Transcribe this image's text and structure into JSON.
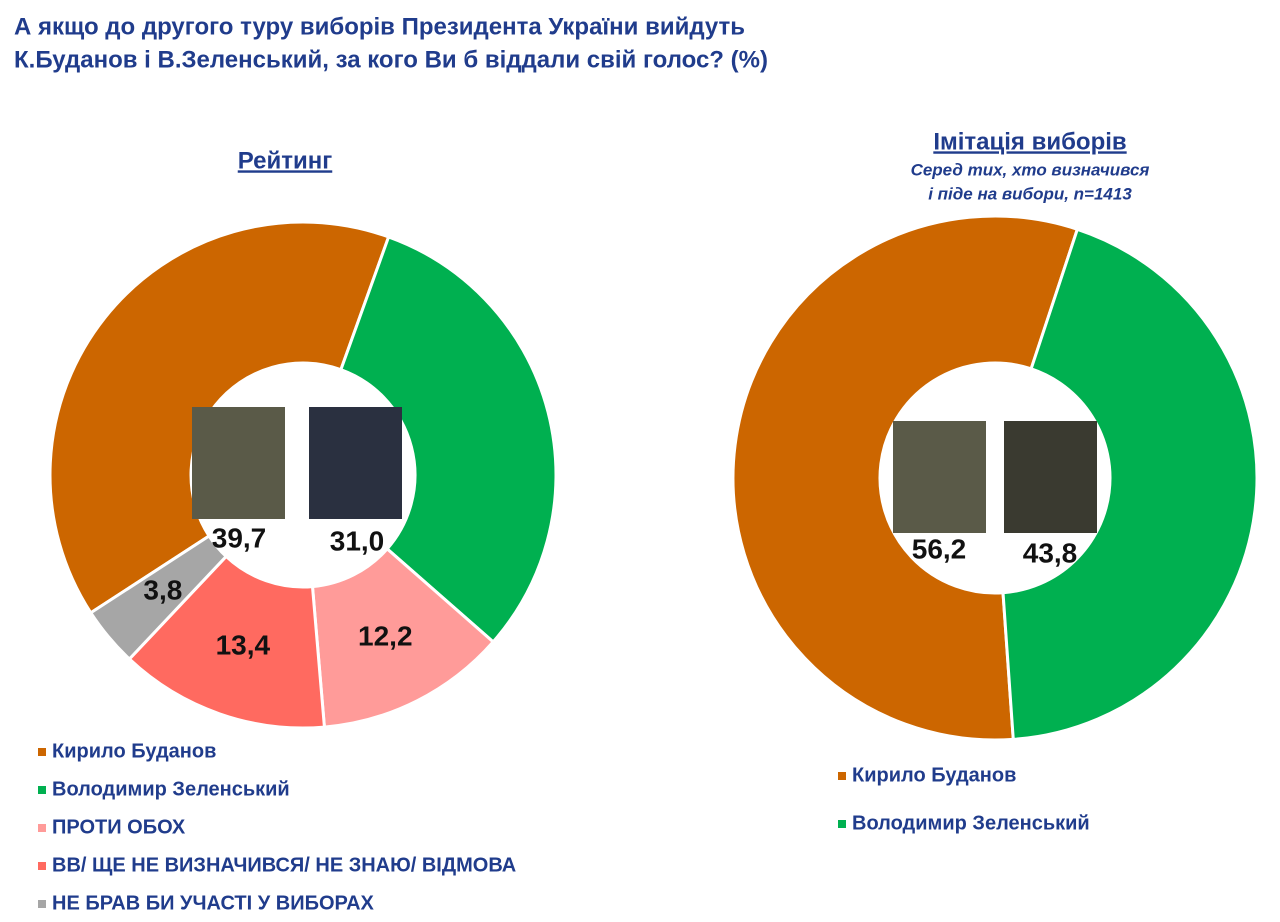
{
  "title": [
    "А якщо до другого туру виборів Президента України вийдуть",
    "К.Буданов і В.Зеленський, за кого Ви б віддали свій голос? (%)"
  ],
  "chart_data": [
    {
      "type": "pie",
      "title": "Рейтинг",
      "categories": [
        "Кирило Буданов",
        "Володимир Зеленський",
        "ПРОТИ ОБОХ",
        "ВВ/ ЩЕ НЕ ВИЗНАЧИВСЯ/ НЕ ЗНАЮ/ ВІДМОВА",
        "НЕ БРАВ БИ УЧАСТІ У ВИБОРАХ"
      ],
      "values": [
        39.7,
        31.0,
        12.2,
        13.4,
        3.8
      ],
      "value_labels": [
        "39,7",
        "31,0",
        "12,2",
        "13,4",
        "3,8"
      ],
      "colors": [
        "#cc6600",
        "#00b050",
        "#ff9b99",
        "#ff6a60",
        "#a6a6a6"
      ]
    },
    {
      "type": "pie",
      "title": "Імітація виборів",
      "subtitle": [
        "Серед тих, хто визначився",
        "і піде на вибори, n=1413"
      ],
      "categories": [
        "Кирило Буданов",
        "Володимир Зеленський"
      ],
      "values": [
        56.2,
        43.8
      ],
      "value_labels": [
        "56,2",
        "43,8"
      ],
      "colors": [
        "#cc6600",
        "#00b050"
      ]
    }
  ]
}
